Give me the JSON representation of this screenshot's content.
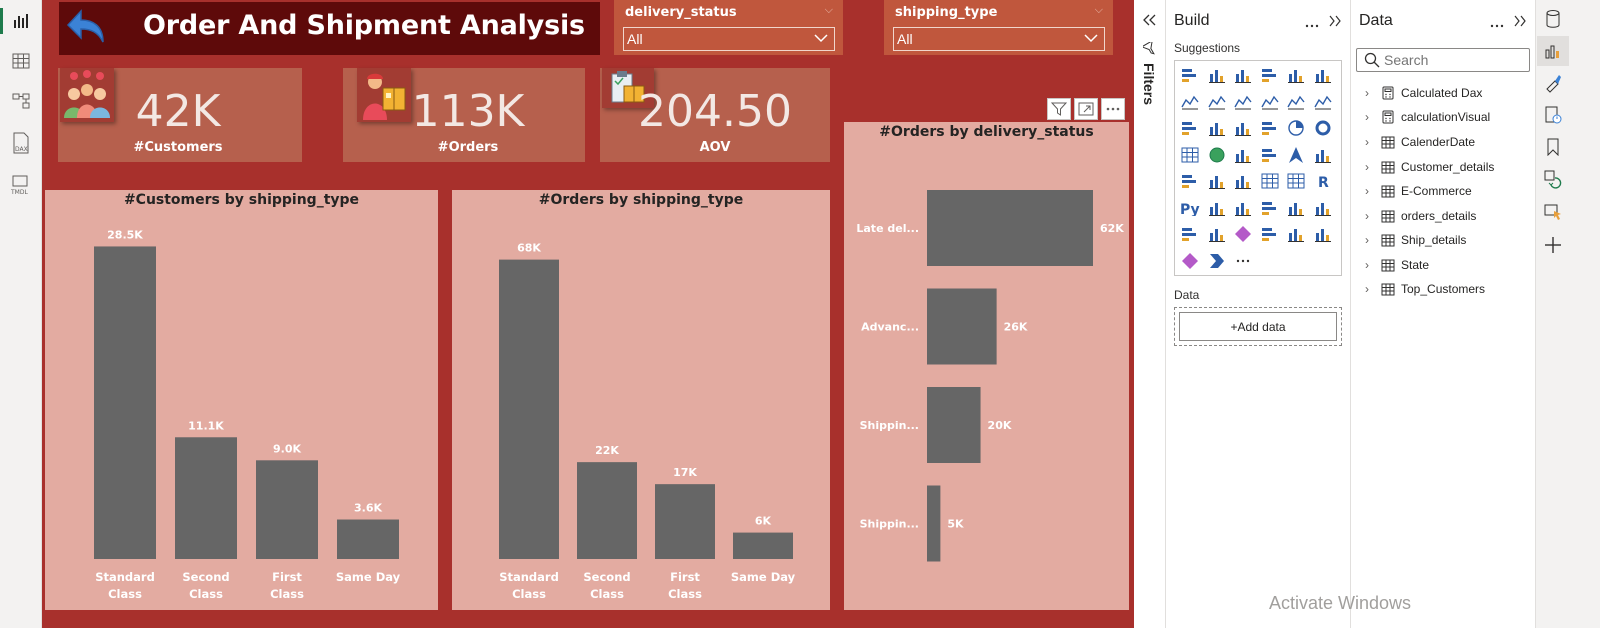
{
  "report": {
    "title": "Order And Shipment Analysis",
    "slicers": [
      {
        "label": "delivery_status",
        "value": "All"
      },
      {
        "label": "shipping_type",
        "value": "All"
      }
    ],
    "kpis": [
      {
        "value": "42K",
        "label": "#Customers",
        "icon": "customers-icon"
      },
      {
        "value": "113K",
        "label": "#Orders",
        "icon": "delivery-person-icon"
      },
      {
        "value": "204.50",
        "label": "AOV",
        "icon": "clipboard-package-icon"
      }
    ]
  },
  "chart_data": [
    {
      "type": "bar",
      "title": "#Customers by shipping_type",
      "categories": [
        "Standard Class",
        "Second Class",
        "First Class",
        "Same Day"
      ],
      "values": [
        28500,
        11100,
        9000,
        3600
      ],
      "data_labels": [
        "28.5K",
        "11.1K",
        "9.0K",
        "3.6K"
      ],
      "ylim": [
        0,
        30000
      ]
    },
    {
      "type": "bar",
      "title": "#Orders by shipping_type",
      "categories": [
        "Standard Class",
        "Second Class",
        "First Class",
        "Same Day"
      ],
      "values": [
        68000,
        22000,
        17000,
        6000
      ],
      "data_labels": [
        "68K",
        "22K",
        "17K",
        "6K"
      ],
      "ylim": [
        0,
        72000
      ]
    },
    {
      "type": "bar",
      "orientation": "horizontal",
      "title": "#Orders by delivery_status",
      "categories": [
        "Late del...",
        "Advanc...",
        "Shippin...",
        "Shippin..."
      ],
      "values": [
        62000,
        26000,
        20000,
        5000
      ],
      "data_labels": [
        "62K",
        "26K",
        "20K",
        "5K"
      ],
      "xlim": [
        0,
        62000
      ]
    }
  ],
  "colors": {
    "canvas_bg": "#a8302c",
    "title_bg": "#5e0a0a",
    "chart_bg": "#e3aba1",
    "bar": "#666666",
    "kpi_bg": "#b6604d"
  },
  "filters": {
    "label": "Filters"
  },
  "build_pane": {
    "title": "Build",
    "suggestions_label": "Suggestions",
    "data_label": "Data",
    "add_data_label": "+Add data"
  },
  "data_pane": {
    "title": "Data",
    "search_placeholder": "Search",
    "tables": [
      {
        "name": "Calculated Dax",
        "icon": "calculator-icon"
      },
      {
        "name": "calculationVisual",
        "icon": "calculator-icon"
      },
      {
        "name": "CalenderDate",
        "icon": "calendar-table-icon"
      },
      {
        "name": "Customer_details",
        "icon": "table-icon"
      },
      {
        "name": "E-Commerce",
        "icon": "table-icon"
      },
      {
        "name": "orders_details",
        "icon": "table-icon"
      },
      {
        "name": "Ship_details",
        "icon": "table-icon"
      },
      {
        "name": "State",
        "icon": "table-icon"
      },
      {
        "name": "Top_Customers",
        "icon": "calendar-table-icon"
      }
    ]
  },
  "watermark": "Activate Windows"
}
